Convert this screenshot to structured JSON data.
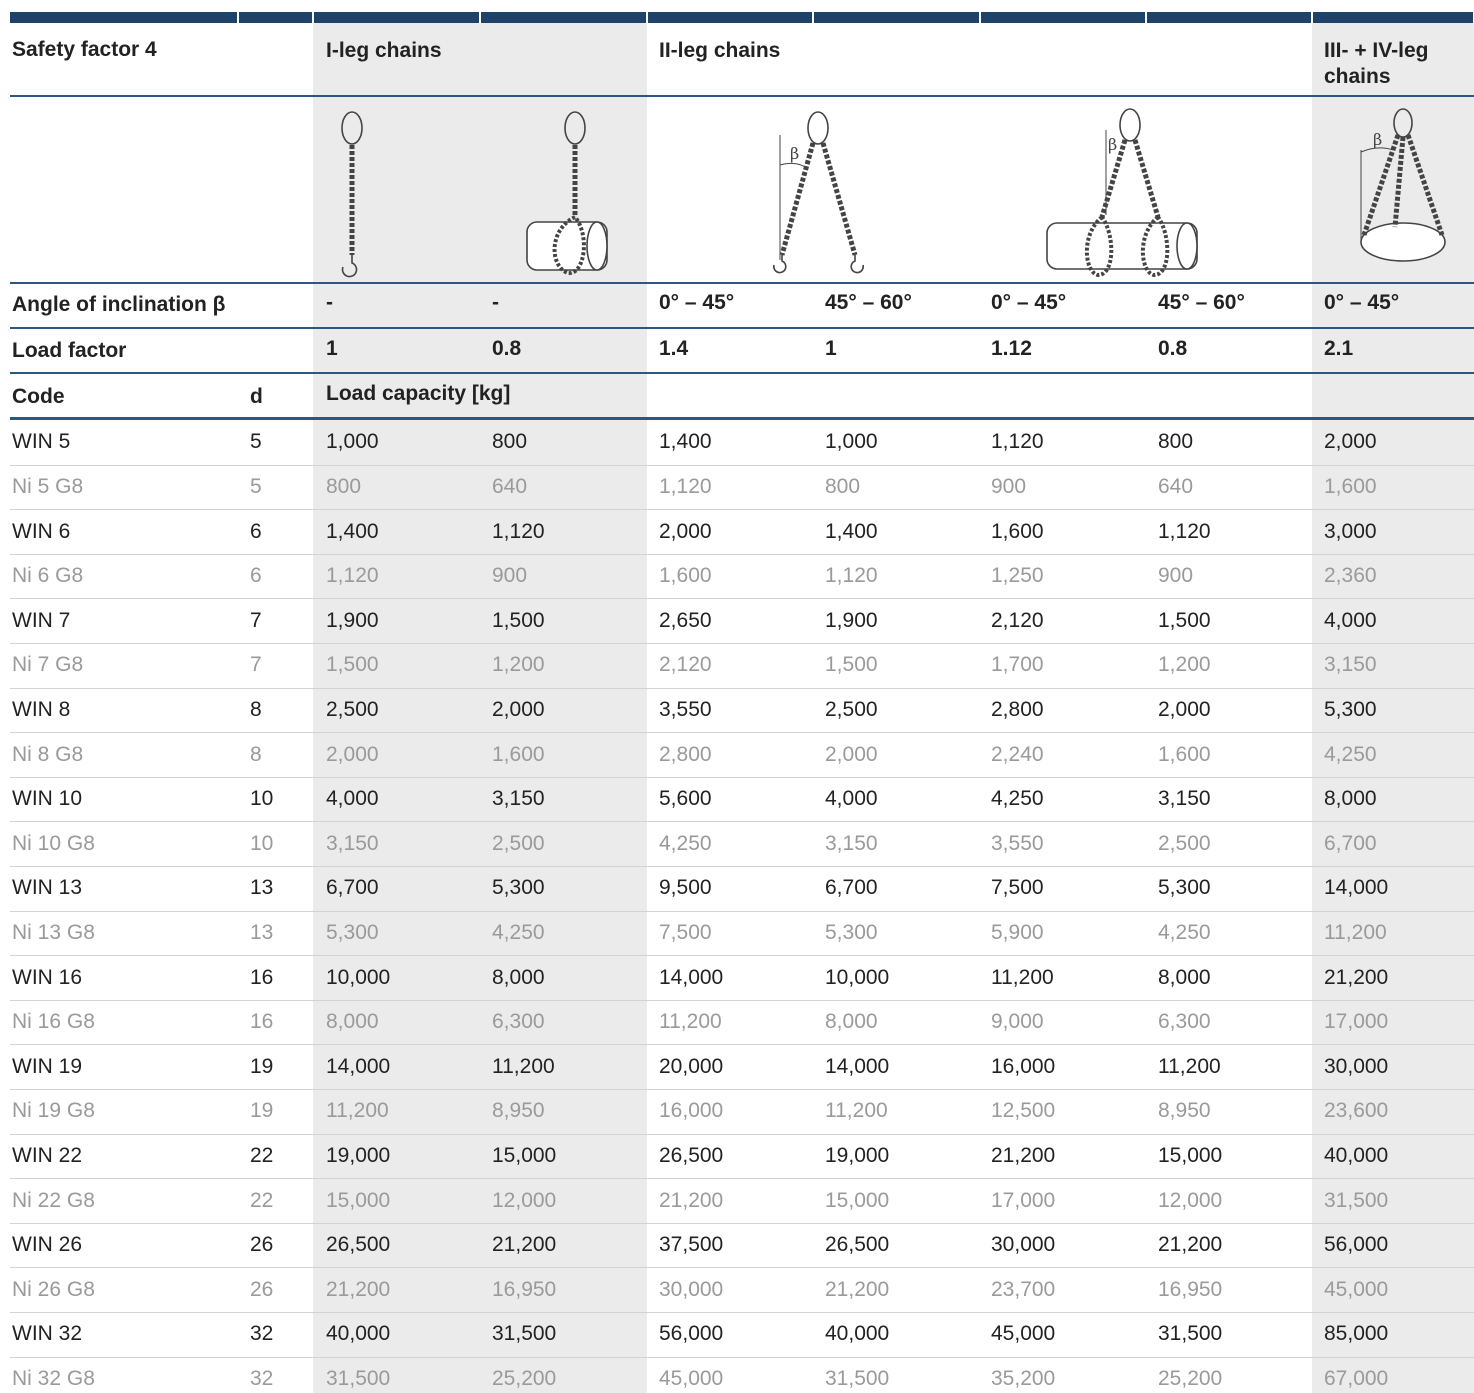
{
  "header": {
    "safety_factor": "Safety factor 4",
    "groups": [
      "I-leg chains",
      "II-leg chains",
      "III- + IV-leg chains"
    ]
  },
  "figures": {
    "angle_symbol": "β"
  },
  "angle_row": {
    "label": "Angle of inclination β",
    "values": [
      "-",
      "-",
      "0° – 45°",
      "45° – 60°",
      "0° – 45°",
      "45° – 60°",
      "0° – 45°"
    ]
  },
  "load_factor_row": {
    "label": "Load factor",
    "values": [
      "1",
      "0.8",
      "1.4",
      "1",
      "1.12",
      "0.8",
      "2.1"
    ]
  },
  "column_header": {
    "code": "Code",
    "d": "d",
    "capacity": "Load capacity [kg]"
  },
  "rows": [
    [
      "WIN 5",
      "5",
      "1,000",
      "800",
      "1,400",
      "1,000",
      "1,120",
      "800",
      "2,000"
    ],
    [
      "Ni 5 G8",
      "5",
      "800",
      "640",
      "1,120",
      "800",
      "900",
      "640",
      "1,600"
    ],
    [
      "WIN 6",
      "6",
      "1,400",
      "1,120",
      "2,000",
      "1,400",
      "1,600",
      "1,120",
      "3,000"
    ],
    [
      "Ni 6 G8",
      "6",
      "1,120",
      "900",
      "1,600",
      "1,120",
      "1,250",
      "900",
      "2,360"
    ],
    [
      "WIN 7",
      "7",
      "1,900",
      "1,500",
      "2,650",
      "1,900",
      "2,120",
      "1,500",
      "4,000"
    ],
    [
      "Ni 7 G8",
      "7",
      "1,500",
      "1,200",
      "2,120",
      "1,500",
      "1,700",
      "1,200",
      "3,150"
    ],
    [
      "WIN 8",
      "8",
      "2,500",
      "2,000",
      "3,550",
      "2,500",
      "2,800",
      "2,000",
      "5,300"
    ],
    [
      "Ni 8 G8",
      "8",
      "2,000",
      "1,600",
      "2,800",
      "2,000",
      "2,240",
      "1,600",
      "4,250"
    ],
    [
      "WIN 10",
      "10",
      "4,000",
      "3,150",
      "5,600",
      "4,000",
      "4,250",
      "3,150",
      "8,000"
    ],
    [
      "Ni 10 G8",
      "10",
      "3,150",
      "2,500",
      "4,250",
      "3,150",
      "3,550",
      "2,500",
      "6,700"
    ],
    [
      "WIN 13",
      "13",
      "6,700",
      "5,300",
      "9,500",
      "6,700",
      "7,500",
      "5,300",
      "14,000"
    ],
    [
      "Ni 13 G8",
      "13",
      "5,300",
      "4,250",
      "7,500",
      "5,300",
      "5,900",
      "4,250",
      "11,200"
    ],
    [
      "WIN 16",
      "16",
      "10,000",
      "8,000",
      "14,000",
      "10,000",
      "11,200",
      "8,000",
      "21,200"
    ],
    [
      "Ni 16 G8",
      "16",
      "8,000",
      "6,300",
      "11,200",
      "8,000",
      "9,000",
      "6,300",
      "17,000"
    ],
    [
      "WIN 19",
      "19",
      "14,000",
      "11,200",
      "20,000",
      "14,000",
      "16,000",
      "11,200",
      "30,000"
    ],
    [
      "Ni 19 G8",
      "19",
      "11,200",
      "8,950",
      "16,000",
      "11,200",
      "12,500",
      "8,950",
      "23,600"
    ],
    [
      "WIN 22",
      "22",
      "19,000",
      "15,000",
      "26,500",
      "19,000",
      "21,200",
      "15,000",
      "40,000"
    ],
    [
      "Ni 22 G8",
      "22",
      "15,000",
      "12,000",
      "21,200",
      "15,000",
      "17,000",
      "12,000",
      "31,500"
    ],
    [
      "WIN 26",
      "26",
      "26,500",
      "21,200",
      "37,500",
      "26,500",
      "30,000",
      "21,200",
      "56,000"
    ],
    [
      "Ni 26 G8",
      "26",
      "21,200",
      "16,950",
      "30,000",
      "21,200",
      "23,700",
      "16,950",
      "45,000"
    ],
    [
      "WIN 32",
      "32",
      "40,000",
      "31,500",
      "56,000",
      "40,000",
      "45,000",
      "31,500",
      "85,000"
    ],
    [
      "Ni 32 G8",
      "32",
      "31,500",
      "25,200",
      "45,000",
      "31,500",
      "35,200",
      "25,200",
      "67,000"
    ]
  ]
}
